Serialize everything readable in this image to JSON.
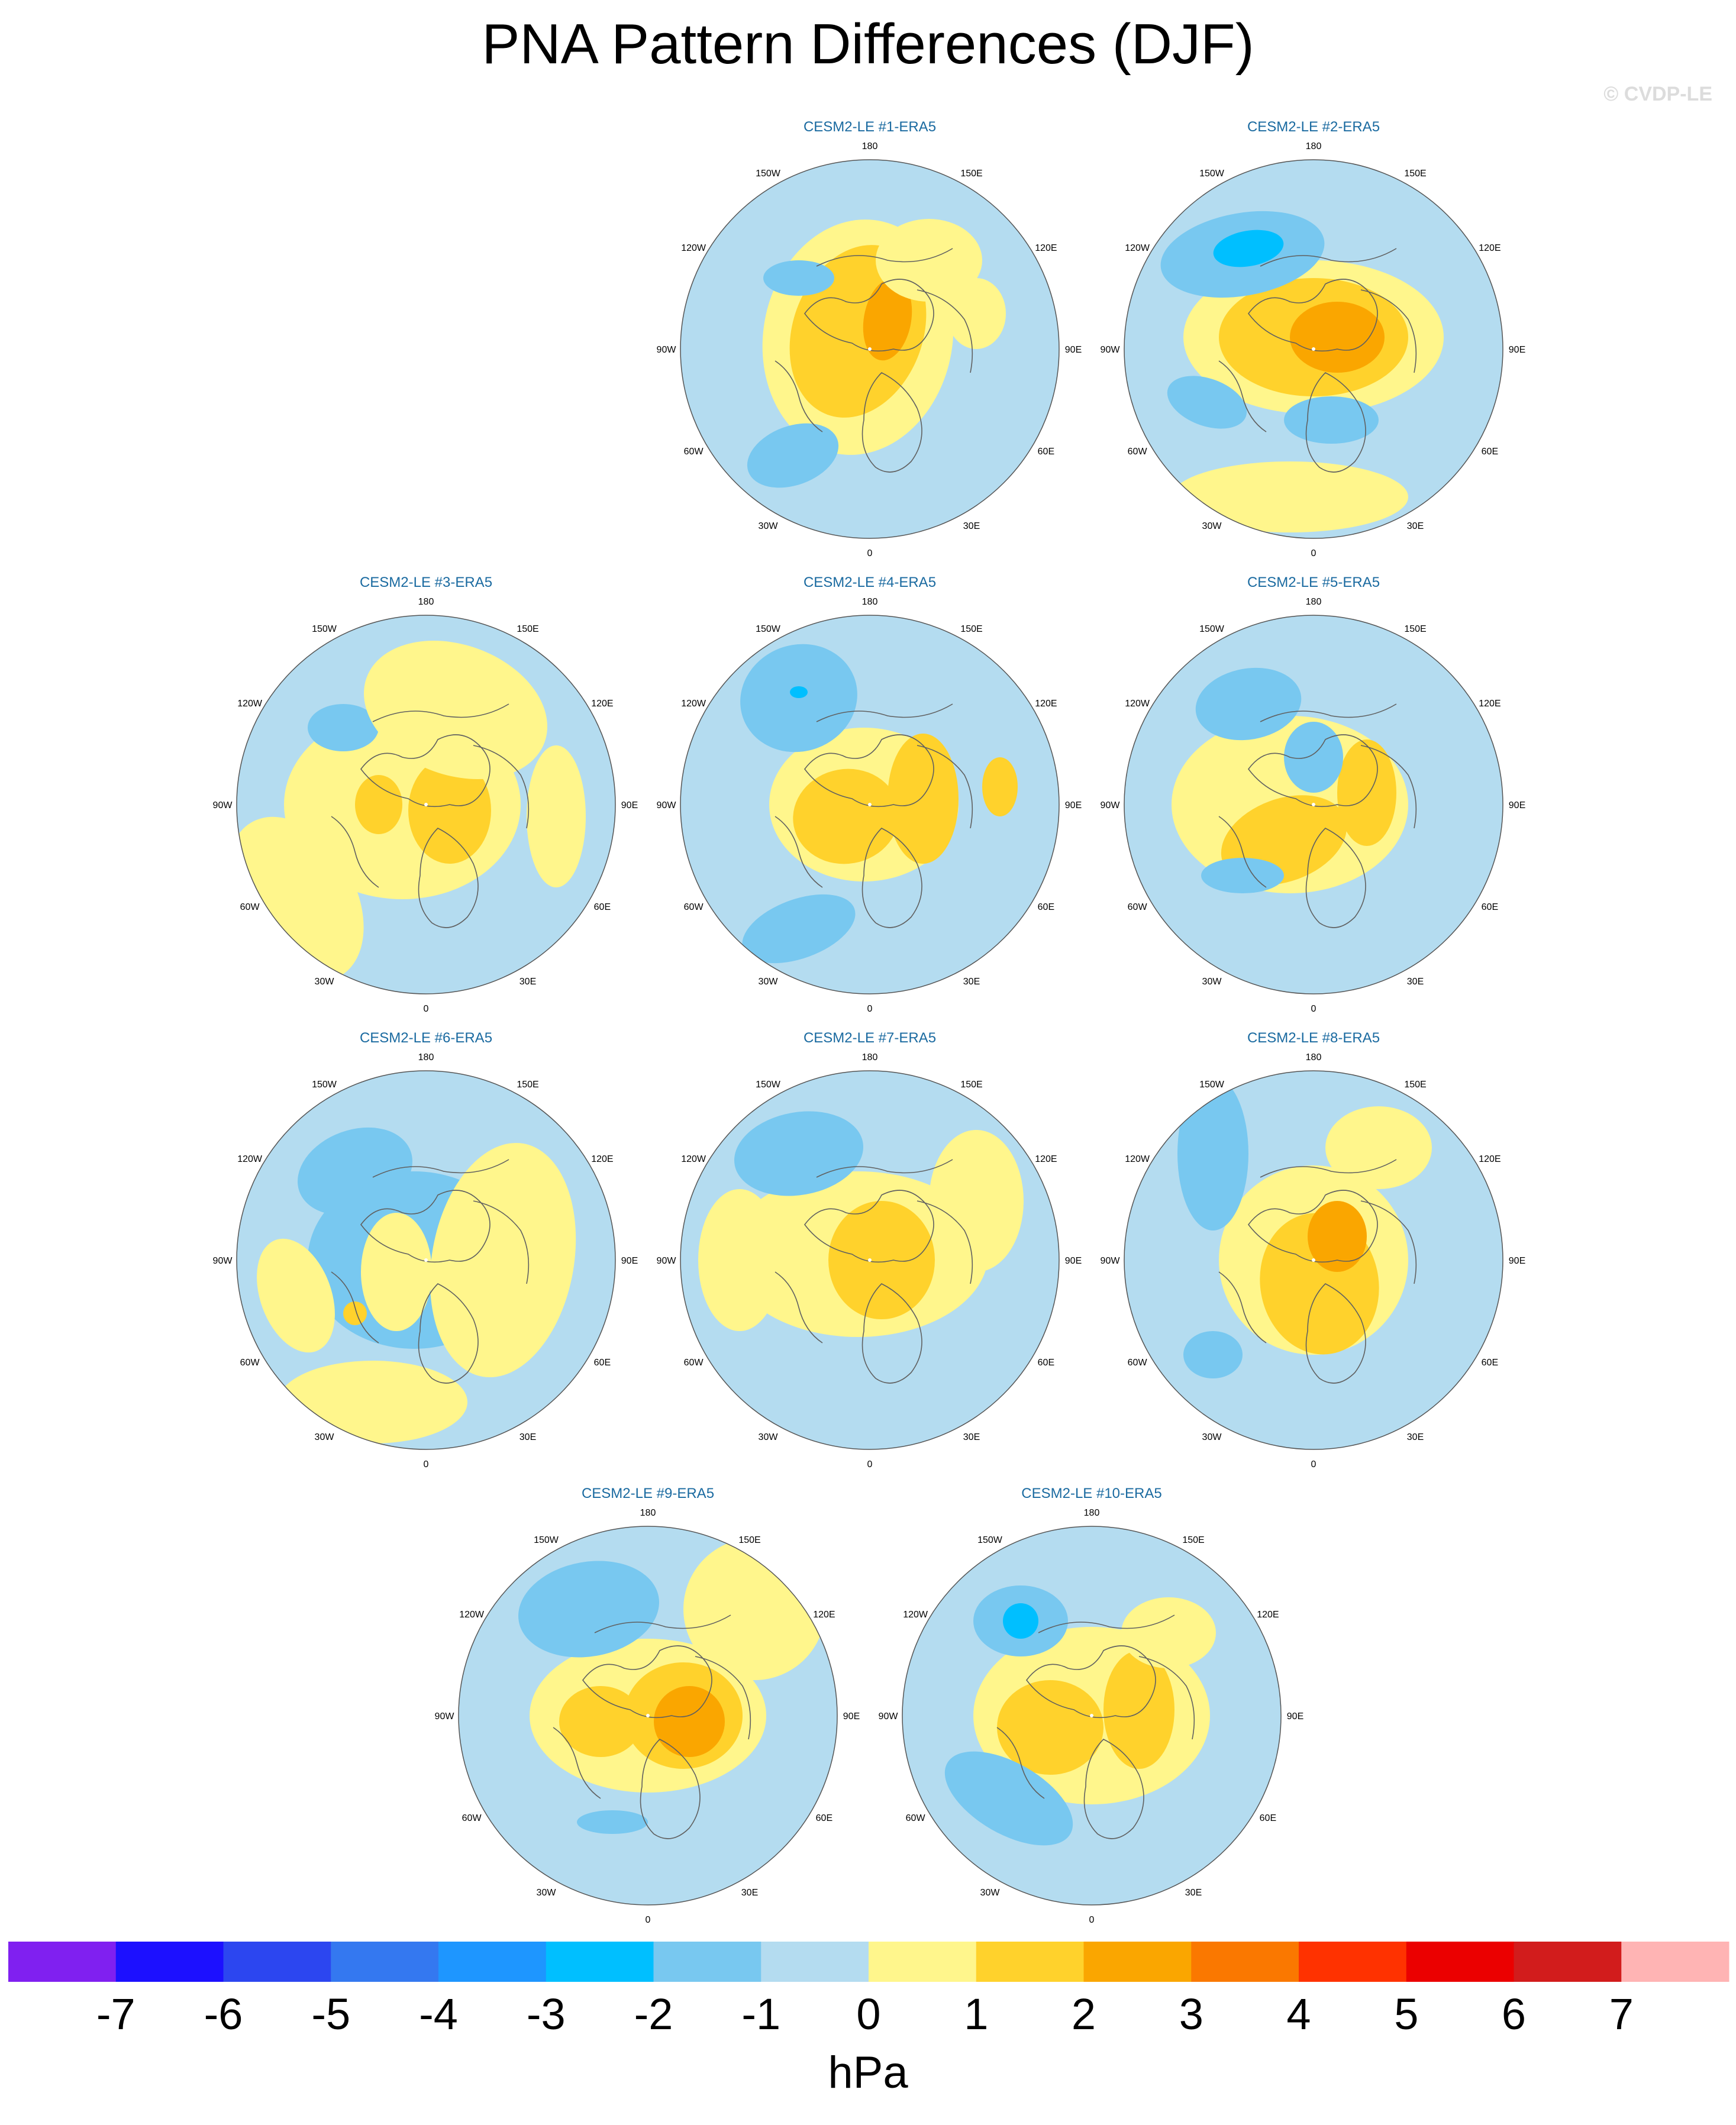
{
  "title": "PNA Pattern Differences (DJF)",
  "watermark": "© CVDP-LE",
  "lon_labels": [
    "180",
    "150E",
    "120E",
    "90E",
    "60E",
    "30E",
    "0",
    "30W",
    "60W",
    "90W",
    "120W",
    "150W"
  ],
  "panels": [
    {
      "title": "CESM2-LE #1-ERA5"
    },
    {
      "title": "CESM2-LE #2-ERA5"
    },
    {
      "title": "CESM2-LE #3-ERA5"
    },
    {
      "title": "CESM2-LE #4-ERA5"
    },
    {
      "title": "CESM2-LE #5-ERA5"
    },
    {
      "title": "CESM2-LE #6-ERA5"
    },
    {
      "title": "CESM2-LE #7-ERA5"
    },
    {
      "title": "CESM2-LE #8-ERA5"
    },
    {
      "title": "CESM2-LE #9-ERA5"
    },
    {
      "title": "CESM2-LE #10-ERA5"
    }
  ],
  "colorbar": {
    "unit": "hPa",
    "ticks": [
      "-7",
      "-6",
      "-5",
      "-4",
      "-3",
      "-2",
      "-1",
      "0",
      "1",
      "2",
      "3",
      "4",
      "5",
      "6",
      "7"
    ],
    "colors": [
      "#8020f0",
      "#1c10ff",
      "#2c46f0",
      "#3478f0",
      "#1e96ff",
      "#00bfff",
      "#78c8f0",
      "#b4dcf0",
      "#fff68c",
      "#ffd22c",
      "#faa600",
      "#fa7800",
      "#ff3200",
      "#eb0000",
      "#d21c1c",
      "#ffb4b4"
    ]
  },
  "colors": {
    "land_outline": "#606060",
    "panel_title": "#1a6aa0",
    "low": "#b4dcf0",
    "high": "#fff68c"
  }
}
